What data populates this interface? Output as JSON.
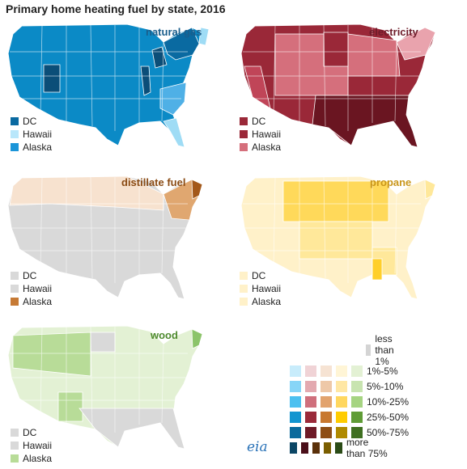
{
  "title": "Primary home heating fuel by state, 2016",
  "panels": [
    {
      "id": "natural_gas",
      "label": "natural gas",
      "label_color": "#1a5e8c",
      "base": "#0b8ac6",
      "accents": [
        "#0a6aa1",
        "#0b4e78",
        "#4fb0e6",
        "#9fdcf5"
      ],
      "legend": [
        {
          "text": "DC",
          "color": "#0a6aa1"
        },
        {
          "text": "Hawaii",
          "color": "#b9e7fb"
        },
        {
          "text": "Alaska",
          "color": "#1b95d8"
        }
      ]
    },
    {
      "id": "electricity",
      "label": "electricity",
      "label_color": "#6e1c2a",
      "base": "#9a2838",
      "accents": [
        "#d56f7c",
        "#6a1521",
        "#c04558",
        "#e9a3ad"
      ],
      "legend": [
        {
          "text": "DC",
          "color": "#9a2838"
        },
        {
          "text": "Hawaii",
          "color": "#9a2838"
        },
        {
          "text": "Alaska",
          "color": "#d56f7c"
        }
      ]
    },
    {
      "id": "distillate_fuel",
      "label": "distillate fuel",
      "label_color": "#8a4b14",
      "base": "#d9d9d9",
      "accents": [
        "#f7e2cf",
        "#e0a770",
        "#a3581a",
        "#c67a35"
      ],
      "legend": [
        {
          "text": "DC",
          "color": "#d9d9d9"
        },
        {
          "text": "Hawaii",
          "color": "#d9d9d9"
        },
        {
          "text": "Alaska",
          "color": "#c67a35"
        }
      ]
    },
    {
      "id": "propane",
      "label": "propane",
      "label_color": "#c9961b",
      "base": "#fff1c9",
      "accents": [
        "#ffd95a",
        "#ffe89a",
        "#ffcf2a"
      ],
      "legend": [
        {
          "text": "DC",
          "color": "#fff1c9"
        },
        {
          "text": "Hawaii",
          "color": "#fff1c9"
        },
        {
          "text": "Alaska",
          "color": "#fff1c9"
        }
      ]
    },
    {
      "id": "wood",
      "label": "wood",
      "label_color": "#4e8a2e",
      "base": "#e3f1d4",
      "accents": [
        "#b8dc98",
        "#d9d9d9",
        "#8cc46a"
      ],
      "legend": [
        {
          "text": "DC",
          "color": "#d9d9d9"
        },
        {
          "text": "Hawaii",
          "color": "#d9d9d9"
        },
        {
          "text": "Alaska",
          "color": "#b8dc98"
        }
      ]
    }
  ],
  "scale": {
    "less_than_1": {
      "label": "less than 1%",
      "color": "#d4d4d4"
    },
    "bins": [
      {
        "label": "1%-5%",
        "colors": [
          "#c8ecfb",
          "#f0d3d6",
          "#f6e3d3",
          "#fff5d6",
          "#e3f1d4"
        ]
      },
      {
        "label": "5%-10%",
        "colors": [
          "#87d5f7",
          "#e3a9b0",
          "#eec8a8",
          "#ffe7a4",
          "#c8e4b0"
        ]
      },
      {
        "label": "10%-25%",
        "colors": [
          "#4cc0f0",
          "#cf6f7c",
          "#e2a36e",
          "#ffd75f",
          "#a6d482"
        ]
      },
      {
        "label": "25%-50%",
        "colors": [
          "#1295d0",
          "#9a2a3a",
          "#c8782f",
          "#ffcc00",
          "#5f9c36"
        ]
      },
      {
        "label": "50%-75%",
        "colors": [
          "#0a6a9c",
          "#6e1a27",
          "#8e4e15",
          "#b08a00",
          "#3f6f21"
        ]
      },
      {
        "label": "more than 75%",
        "colors": [
          "#0b4665",
          "#4a0f19",
          "#5a300a",
          "#7a5e00",
          "#2a4b16"
        ]
      }
    ]
  },
  "logo_text": "eia"
}
